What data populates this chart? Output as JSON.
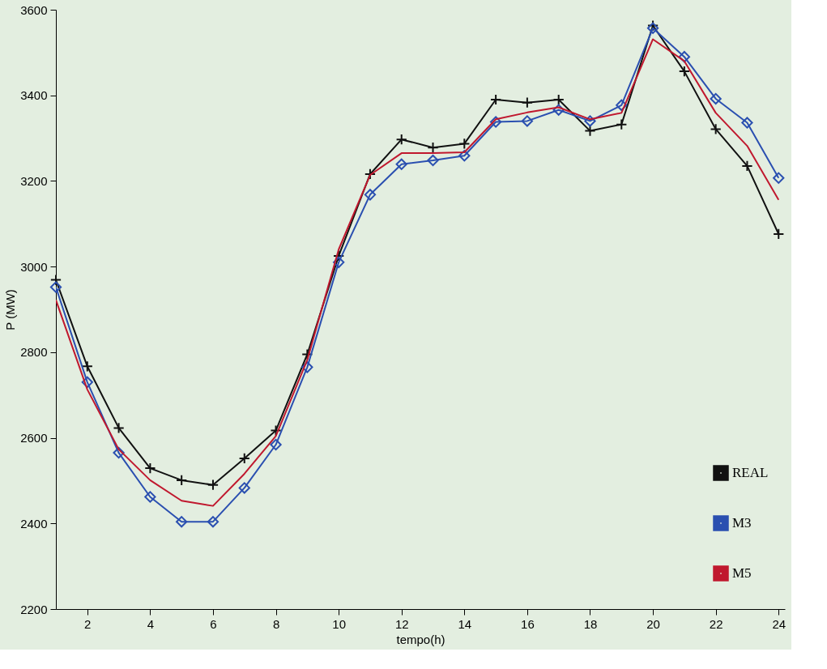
{
  "chart_data": {
    "type": "line",
    "xlabel": "tempo(h)",
    "ylabel": "P (MW)",
    "x": [
      1,
      2,
      3,
      4,
      5,
      6,
      7,
      8,
      9,
      10,
      11,
      12,
      13,
      14,
      15,
      16,
      17,
      18,
      19,
      20,
      21,
      22,
      23,
      24
    ],
    "xlim": [
      1,
      24.2
    ],
    "xticks": [
      2,
      4,
      6,
      8,
      10,
      12,
      14,
      16,
      18,
      20,
      22,
      24
    ],
    "ylim": [
      2200,
      3600
    ],
    "yticks": [
      2200,
      2400,
      2600,
      2800,
      3000,
      3200,
      3400,
      3600
    ],
    "grid": false,
    "legend": "bottom right",
    "series": [
      {
        "name": "REAL",
        "color": "#111111",
        "marker": "cross",
        "values": [
          2969,
          2767,
          2623,
          2529,
          2501,
          2490,
          2552,
          2617,
          2795,
          3025,
          3216,
          3297,
          3278,
          3287,
          3390,
          3383,
          3390,
          3317,
          3332,
          3563,
          3456,
          3321,
          3235,
          3076
        ]
      },
      {
        "name": "M3",
        "color": "#2a4fb0",
        "marker": "diamond",
        "values": [
          2952,
          2730,
          2565,
          2462,
          2404,
          2404,
          2483,
          2584,
          2765,
          3010,
          3168,
          3239,
          3248,
          3259,
          3338,
          3340,
          3366,
          3340,
          3377,
          3557,
          3490,
          3392,
          3336,
          3207
        ]
      },
      {
        "name": "M5",
        "color": "#c0182e",
        "marker": "none",
        "values": [
          2922,
          2713,
          2573,
          2501,
          2453,
          2441,
          2516,
          2604,
          2782,
          3040,
          3214,
          3265,
          3265,
          3267,
          3344,
          3360,
          3372,
          3344,
          3359,
          3531,
          3480,
          3359,
          3282,
          3156
        ]
      }
    ]
  }
}
